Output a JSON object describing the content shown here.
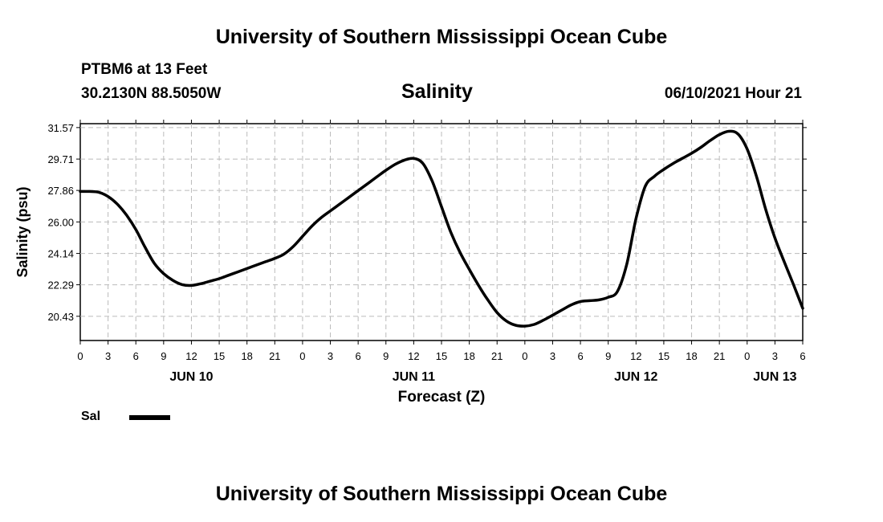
{
  "header": {
    "title": "University of Southern Mississippi Ocean Cube",
    "station": "PTBM6 at 13 Feet",
    "coords": "30.2130N  88.5050W",
    "variable": "Salinity",
    "timestamp": "06/10/2021 Hour 21"
  },
  "footer": {
    "title": "University of Southern Mississippi Ocean Cube"
  },
  "legend": {
    "label": "Sal",
    "color": "#000000"
  },
  "chart_data": {
    "type": "line",
    "title": "Salinity",
    "xlabel": "Forecast (Z)",
    "ylabel": "Salinity (psu)",
    "xlim": [
      0,
      78
    ],
    "ylim": [
      19.0,
      31.8
    ],
    "yticks": [
      "31.57",
      "29.71",
      "27.86",
      "26.00",
      "24.14",
      "22.29",
      "20.43"
    ],
    "xtick_labels": [
      "0",
      "3",
      "6",
      "9",
      "12",
      "15",
      "18",
      "21",
      "0",
      "3",
      "6",
      "9",
      "12",
      "15",
      "18",
      "21",
      "0",
      "3",
      "6",
      "9",
      "12",
      "15",
      "18",
      "21",
      "0",
      "3",
      "6"
    ],
    "day_labels": [
      {
        "hour": 12,
        "label": "JUN 10"
      },
      {
        "hour": 36,
        "label": "JUN 11"
      },
      {
        "hour": 60,
        "label": "JUN 12"
      },
      {
        "hour": 75,
        "label": "JUN 13"
      }
    ],
    "grid": true,
    "series": [
      {
        "name": "Sal",
        "color": "#000000",
        "x": [
          0,
          1,
          2,
          3,
          4,
          5,
          6,
          7,
          8,
          9,
          10,
          11,
          12,
          13,
          14,
          15,
          16,
          17,
          18,
          19,
          20,
          21,
          22,
          23,
          24,
          25,
          26,
          27,
          28,
          29,
          30,
          31,
          32,
          33,
          34,
          35,
          36,
          37,
          38,
          39,
          40,
          41,
          42,
          43,
          44,
          45,
          46,
          47,
          48,
          49,
          50,
          51,
          52,
          53,
          54,
          55,
          56,
          57,
          58,
          59,
          60,
          61,
          62,
          63,
          64,
          65,
          66,
          67,
          68,
          69,
          70,
          71,
          72,
          73,
          74,
          75,
          76,
          77,
          78
        ],
        "values": [
          27.8,
          27.8,
          27.75,
          27.5,
          27.05,
          26.4,
          25.55,
          24.5,
          23.55,
          22.95,
          22.55,
          22.3,
          22.25,
          22.35,
          22.5,
          22.65,
          22.85,
          23.05,
          23.25,
          23.45,
          23.65,
          23.85,
          24.1,
          24.55,
          25.15,
          25.75,
          26.25,
          26.65,
          27.05,
          27.45,
          27.85,
          28.25,
          28.65,
          29.05,
          29.4,
          29.65,
          29.75,
          29.45,
          28.4,
          26.9,
          25.4,
          24.2,
          23.2,
          22.25,
          21.4,
          20.65,
          20.15,
          19.9,
          19.85,
          19.95,
          20.2,
          20.5,
          20.8,
          21.1,
          21.3,
          21.35,
          21.4,
          21.55,
          21.9,
          23.5,
          26.2,
          28.1,
          28.7,
          29.1,
          29.45,
          29.75,
          30.05,
          30.4,
          30.8,
          31.15,
          31.35,
          31.2,
          30.3,
          28.7,
          26.75,
          25.05,
          23.65,
          22.3,
          20.9
        ]
      }
    ]
  }
}
